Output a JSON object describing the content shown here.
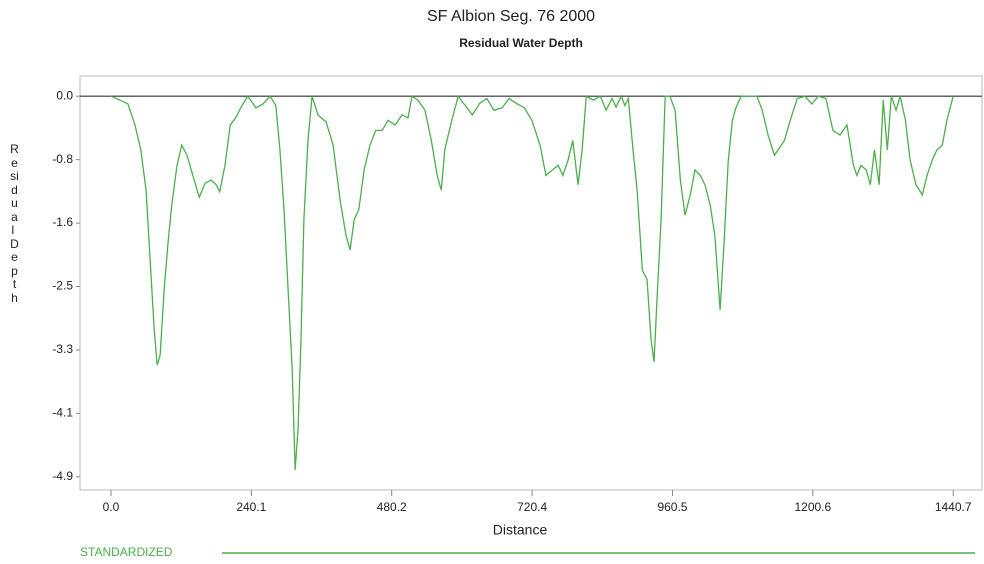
{
  "chart_data": {
    "type": "line",
    "title": "SF Albion Seg. 76  2000",
    "subtitle": "Residual Water Depth",
    "x_label": "Distance",
    "y_label": "Residual Depth",
    "xlim": [
      -53,
      1490
    ],
    "ylim": [
      -5.07,
      0.26
    ],
    "xticks": [
      {
        "value": 0,
        "label": "0.0"
      },
      240.1,
      480.2,
      720.4,
      960.5,
      1200.6,
      1440.7
    ],
    "yticks": [
      {
        "value": 0,
        "label": "0.0"
      },
      {
        "value": -0.8167,
        "label": "-0.8"
      },
      {
        "value": -1.6333,
        "label": "-1.6"
      },
      {
        "value": -2.45,
        "label": "-2.5"
      },
      {
        "value": -3.2667,
        "label": "-3.3"
      },
      {
        "value": -4.0833,
        "label": "-4.1"
      },
      {
        "value": -4.9,
        "label": "-4.9"
      }
    ],
    "series": [
      {
        "name": "STANDARDIZED",
        "color": "#4caf4c",
        "x": [
          0,
          15,
          29,
          41,
          51,
          60,
          67,
          74,
          79,
          84,
          91,
          98,
          104,
          113,
          121,
          130,
          140,
          151,
          161,
          171,
          180,
          186,
          195,
          204,
          214,
          224,
          234,
          248,
          260,
          272,
          282,
          289,
          296,
          303,
          310,
          315,
          320,
          325,
          330,
          337,
          344,
          354,
          368,
          380,
          392,
          402,
          409,
          416,
          424,
          433,
          443,
          453,
          464,
          474,
          486,
          498,
          508,
          515,
          525,
          537,
          548,
          558,
          565,
          571,
          583,
          594,
          606,
          618,
          631,
          643,
          655,
          669,
          681,
          693,
          707,
          720,
          734,
          744,
          755,
          765,
          773,
          782,
          790,
          799,
          806,
          813,
          825,
          837,
          847,
          857,
          864,
          873,
          879,
          885,
          893,
          900,
          909,
          917,
          924,
          929,
          934,
          941,
          948,
          956,
          965,
          974,
          982,
          991,
          999,
          1008,
          1016,
          1025,
          1033,
          1042,
          1049,
          1056,
          1063,
          1069,
          1078,
          1093,
          1105,
          1114,
          1124,
          1135,
          1143,
          1152,
          1162,
          1174,
          1187,
          1199,
          1210,
          1223,
          1235,
          1247,
          1259,
          1270,
          1276,
          1283,
          1292,
          1299,
          1306,
          1314,
          1321,
          1328,
          1335,
          1343,
          1350,
          1359,
          1367,
          1377,
          1388,
          1396,
          1405,
          1413,
          1422,
          1430,
          1440.7
        ],
        "values": [
          0,
          -0.05,
          -0.1,
          -0.37,
          -0.69,
          -1.21,
          -2.11,
          -3.01,
          -3.46,
          -3.34,
          -2.49,
          -1.85,
          -1.4,
          -0.89,
          -0.63,
          -0.76,
          -1.02,
          -1.3,
          -1.12,
          -1.08,
          -1.14,
          -1.23,
          -0.89,
          -0.37,
          -0.27,
          -0.12,
          0,
          -0.15,
          -0.1,
          0,
          -0.12,
          -0.69,
          -1.46,
          -2.49,
          -3.52,
          -4.81,
          -4.29,
          -3.14,
          -1.59,
          -0.57,
          0,
          -0.24,
          -0.33,
          -0.63,
          -1.34,
          -1.79,
          -1.98,
          -1.59,
          -1.46,
          -0.95,
          -0.63,
          -0.44,
          -0.44,
          -0.31,
          -0.37,
          -0.24,
          -0.28,
          0,
          -0.05,
          -0.18,
          -0.57,
          -1.02,
          -1.21,
          -0.69,
          -0.31,
          0,
          -0.12,
          -0.24,
          -0.09,
          -0.03,
          -0.18,
          -0.15,
          -0.03,
          -0.09,
          -0.15,
          -0.31,
          -0.63,
          -1.02,
          -0.95,
          -0.89,
          -1.02,
          -0.82,
          -0.57,
          -1.14,
          -0.69,
          0,
          -0.05,
          0,
          -0.18,
          -0.03,
          -0.14,
          0,
          -0.12,
          -0.03,
          -0.69,
          -1.21,
          -2.24,
          -2.36,
          -3.14,
          -3.42,
          -2.62,
          -1.59,
          0,
          0,
          -0.18,
          -1.08,
          -1.53,
          -1.27,
          -0.95,
          -1.02,
          -1.14,
          -1.4,
          -1.79,
          -2.75,
          -1.85,
          -0.82,
          -0.31,
          -0.15,
          0,
          0,
          0,
          -0.18,
          -0.5,
          -0.76,
          -0.67,
          -0.57,
          -0.31,
          -0.03,
          0,
          -0.1,
          0,
          -0.03,
          -0.44,
          -0.5,
          -0.37,
          -0.89,
          -1.02,
          -0.89,
          -0.95,
          -1.14,
          -0.69,
          -1.14,
          -0.05,
          -0.69,
          0,
          -0.18,
          0,
          -0.31,
          -0.82,
          -1.14,
          -1.27,
          -1.02,
          -0.82,
          -0.69,
          -0.63,
          -0.31,
          0
        ]
      }
    ]
  }
}
